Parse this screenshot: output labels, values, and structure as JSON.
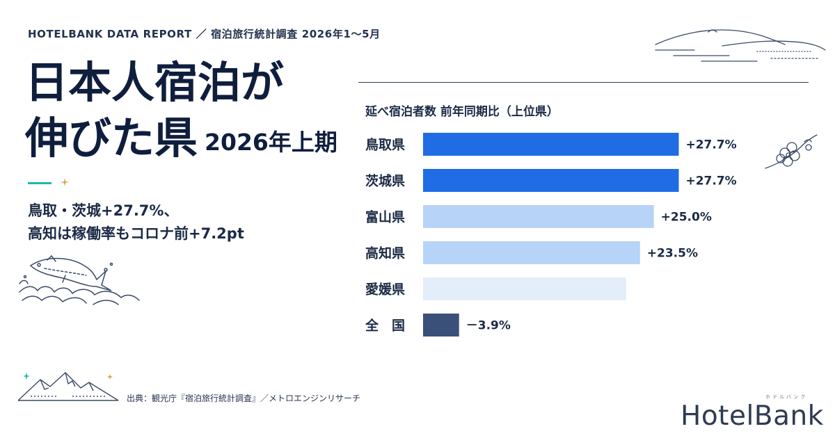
{
  "header": {
    "report_label": "HOTELBANK DATA REPORT ／ 宿泊旅行統計調査 2026年1～5月"
  },
  "title": {
    "line1": "日本人宿泊が",
    "line2_main": "伸びた県",
    "line2_sub": "2026年上期"
  },
  "summary": {
    "line1": "鳥取・茨城+27.7%、",
    "line2": "高知は稼働率もコロナ前+7.2pt"
  },
  "source": {
    "text": "出典：観光庁『宿泊旅行統計調査』／メトロエンジンリサーチ"
  },
  "logo": {
    "text": "HotelBank",
    "ruby": "ホテルバンク"
  },
  "icons": [
    "fish-wave-illustration",
    "mountains-illustration",
    "hills-illustration",
    "plum-blossom-illustration",
    "sparkle-icon"
  ],
  "colors": {
    "strong_blue": "#1f6ce4",
    "light_blue": "#b7d3f7",
    "pale_blue": "#e4eefb",
    "navy": "#3b5078",
    "teal": "#1fb8a7",
    "gold": "#d9a23a"
  },
  "chart_data": {
    "type": "bar",
    "orientation": "horizontal",
    "title": "延べ宿泊者数 前年同期比（上位県）",
    "xlabel": "",
    "ylabel": "",
    "unit": "%",
    "categories": [
      "鳥取県",
      "茨城県",
      "富山県",
      "高知県",
      "愛媛県",
      "全　国"
    ],
    "values": [
      27.7,
      27.7,
      25.0,
      23.5,
      22.0,
      -3.9
    ],
    "value_labels": [
      "+27.7%",
      "+27.7%",
      "+25.0%",
      "+23.5%",
      "",
      "－3.9%"
    ],
    "bar_colors": [
      "#1f6ce4",
      "#1f6ce4",
      "#b7d3f7",
      "#b7d3f7",
      "#e4eefb",
      "#3b5078"
    ],
    "xlim": [
      0,
      30
    ],
    "grid": false,
    "legend": "none"
  }
}
